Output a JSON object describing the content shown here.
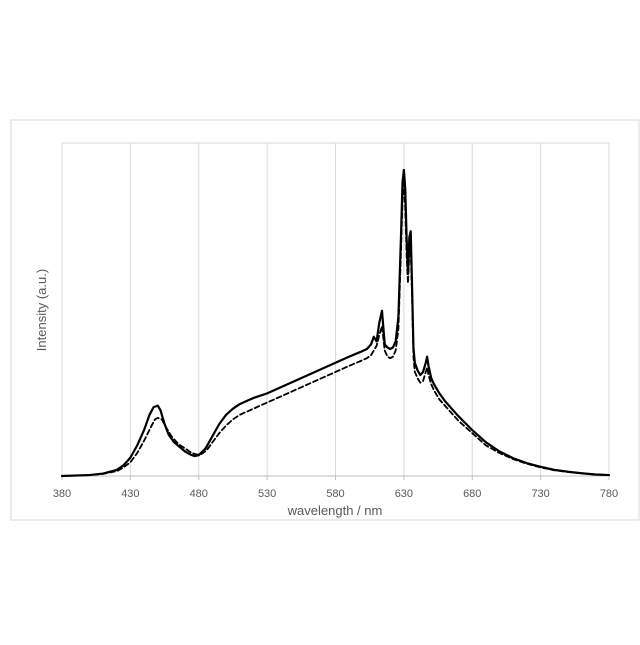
{
  "chart_data": {
    "type": "line",
    "title": "",
    "xlabel": "wavelength / nm",
    "ylabel": "Intensity (a.u.)",
    "xlim": [
      380,
      780
    ],
    "ylim": [
      0,
      1
    ],
    "xticks": [
      380,
      430,
      480,
      530,
      580,
      630,
      680,
      730,
      780
    ],
    "yticks": [],
    "grid": "vertical",
    "legend": "none",
    "series": [
      {
        "style": "solid",
        "color": "#000000",
        "x": [
          380,
          400,
          410,
          420,
          425,
          430,
          435,
          440,
          444,
          447,
          450,
          452,
          455,
          458,
          462,
          466,
          470,
          474,
          477,
          480,
          485,
          490,
          495,
          500,
          505,
          510,
          515,
          520,
          530,
          540,
          550,
          560,
          570,
          580,
          590,
          598,
          603,
          606,
          608,
          610,
          612,
          614,
          616,
          618,
          620,
          622,
          624,
          626,
          628,
          629,
          630,
          631,
          632,
          633,
          634,
          635,
          636,
          637,
          638,
          640,
          642,
          644,
          646,
          647,
          648,
          650,
          652,
          654,
          656,
          660,
          665,
          670,
          680,
          690,
          700,
          710,
          720,
          730,
          740,
          750,
          760,
          770,
          780
        ],
        "y": [
          0.0,
          0.003,
          0.008,
          0.02,
          0.035,
          0.06,
          0.1,
          0.15,
          0.2,
          0.225,
          0.23,
          0.215,
          0.17,
          0.135,
          0.11,
          0.095,
          0.08,
          0.07,
          0.065,
          0.068,
          0.09,
          0.13,
          0.17,
          0.2,
          0.22,
          0.235,
          0.245,
          0.255,
          0.27,
          0.29,
          0.31,
          0.33,
          0.35,
          0.37,
          0.39,
          0.405,
          0.415,
          0.43,
          0.455,
          0.44,
          0.5,
          0.54,
          0.43,
          0.42,
          0.415,
          0.42,
          0.44,
          0.52,
          0.8,
          0.96,
          1.0,
          0.94,
          0.78,
          0.66,
          0.78,
          0.8,
          0.62,
          0.42,
          0.37,
          0.345,
          0.33,
          0.34,
          0.37,
          0.39,
          0.36,
          0.32,
          0.3,
          0.285,
          0.27,
          0.245,
          0.22,
          0.195,
          0.15,
          0.11,
          0.08,
          0.058,
          0.042,
          0.03,
          0.02,
          0.014,
          0.009,
          0.005,
          0.003
        ]
      },
      {
        "style": "dashed",
        "color": "#000000",
        "x": [
          380,
          400,
          410,
          420,
          425,
          430,
          435,
          440,
          445,
          448,
          450,
          453,
          456,
          460,
          465,
          470,
          475,
          479,
          482,
          486,
          490,
          495,
          500,
          505,
          510,
          515,
          520,
          530,
          540,
          550,
          560,
          570,
          580,
          590,
          598,
          603,
          606,
          608,
          610,
          612,
          614,
          616,
          618,
          620,
          622,
          624,
          626,
          628,
          629,
          630,
          631,
          632,
          633,
          634,
          635,
          636,
          637,
          638,
          640,
          642,
          644,
          646,
          647,
          648,
          650,
          652,
          654,
          656,
          660,
          665,
          670,
          680,
          690,
          700,
          710,
          720,
          730,
          740,
          750,
          760,
          770,
          780
        ],
        "y": [
          0.0,
          0.003,
          0.007,
          0.016,
          0.028,
          0.045,
          0.075,
          0.115,
          0.16,
          0.185,
          0.19,
          0.185,
          0.16,
          0.13,
          0.105,
          0.09,
          0.075,
          0.07,
          0.072,
          0.085,
          0.11,
          0.14,
          0.165,
          0.185,
          0.2,
          0.21,
          0.22,
          0.24,
          0.26,
          0.28,
          0.3,
          0.32,
          0.34,
          0.36,
          0.375,
          0.385,
          0.395,
          0.41,
          0.425,
          0.46,
          0.49,
          0.41,
          0.39,
          0.385,
          0.39,
          0.41,
          0.48,
          0.75,
          0.9,
          0.955,
          0.88,
          0.72,
          0.63,
          0.73,
          0.75,
          0.58,
          0.39,
          0.34,
          0.32,
          0.305,
          0.31,
          0.34,
          0.355,
          0.33,
          0.3,
          0.28,
          0.265,
          0.25,
          0.23,
          0.205,
          0.18,
          0.14,
          0.1,
          0.075,
          0.055,
          0.04,
          0.028,
          0.019,
          0.013,
          0.009,
          0.005,
          0.003
        ]
      }
    ]
  }
}
